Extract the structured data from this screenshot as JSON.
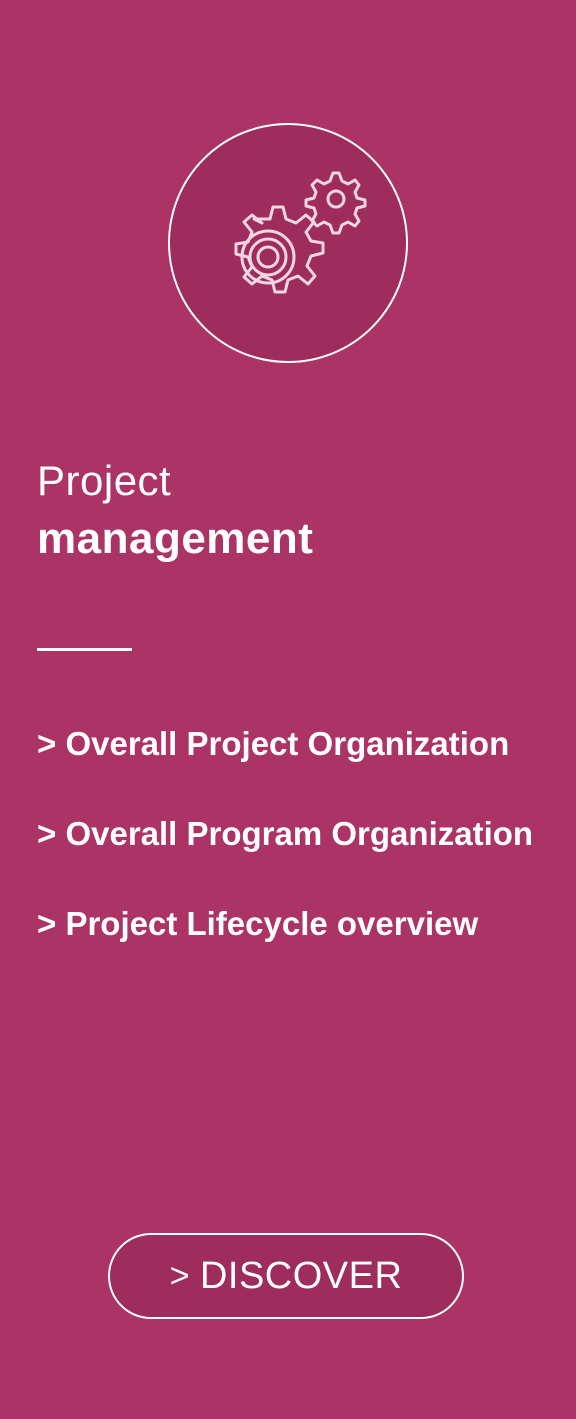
{
  "card": {
    "icon": "gears-icon",
    "title_line1": "Project",
    "title_line2": "management",
    "links": [
      {
        "label": "> Overall Project Organization"
      },
      {
        "label": "> Overall Program Organization"
      },
      {
        "label": "> Project Lifecycle overview"
      }
    ],
    "button": {
      "chevron": ">",
      "label": "DISCOVER"
    }
  },
  "colors": {
    "background": "#ac3366",
    "circle_fill": "#9e2c5c",
    "foreground": "#ffffff"
  }
}
